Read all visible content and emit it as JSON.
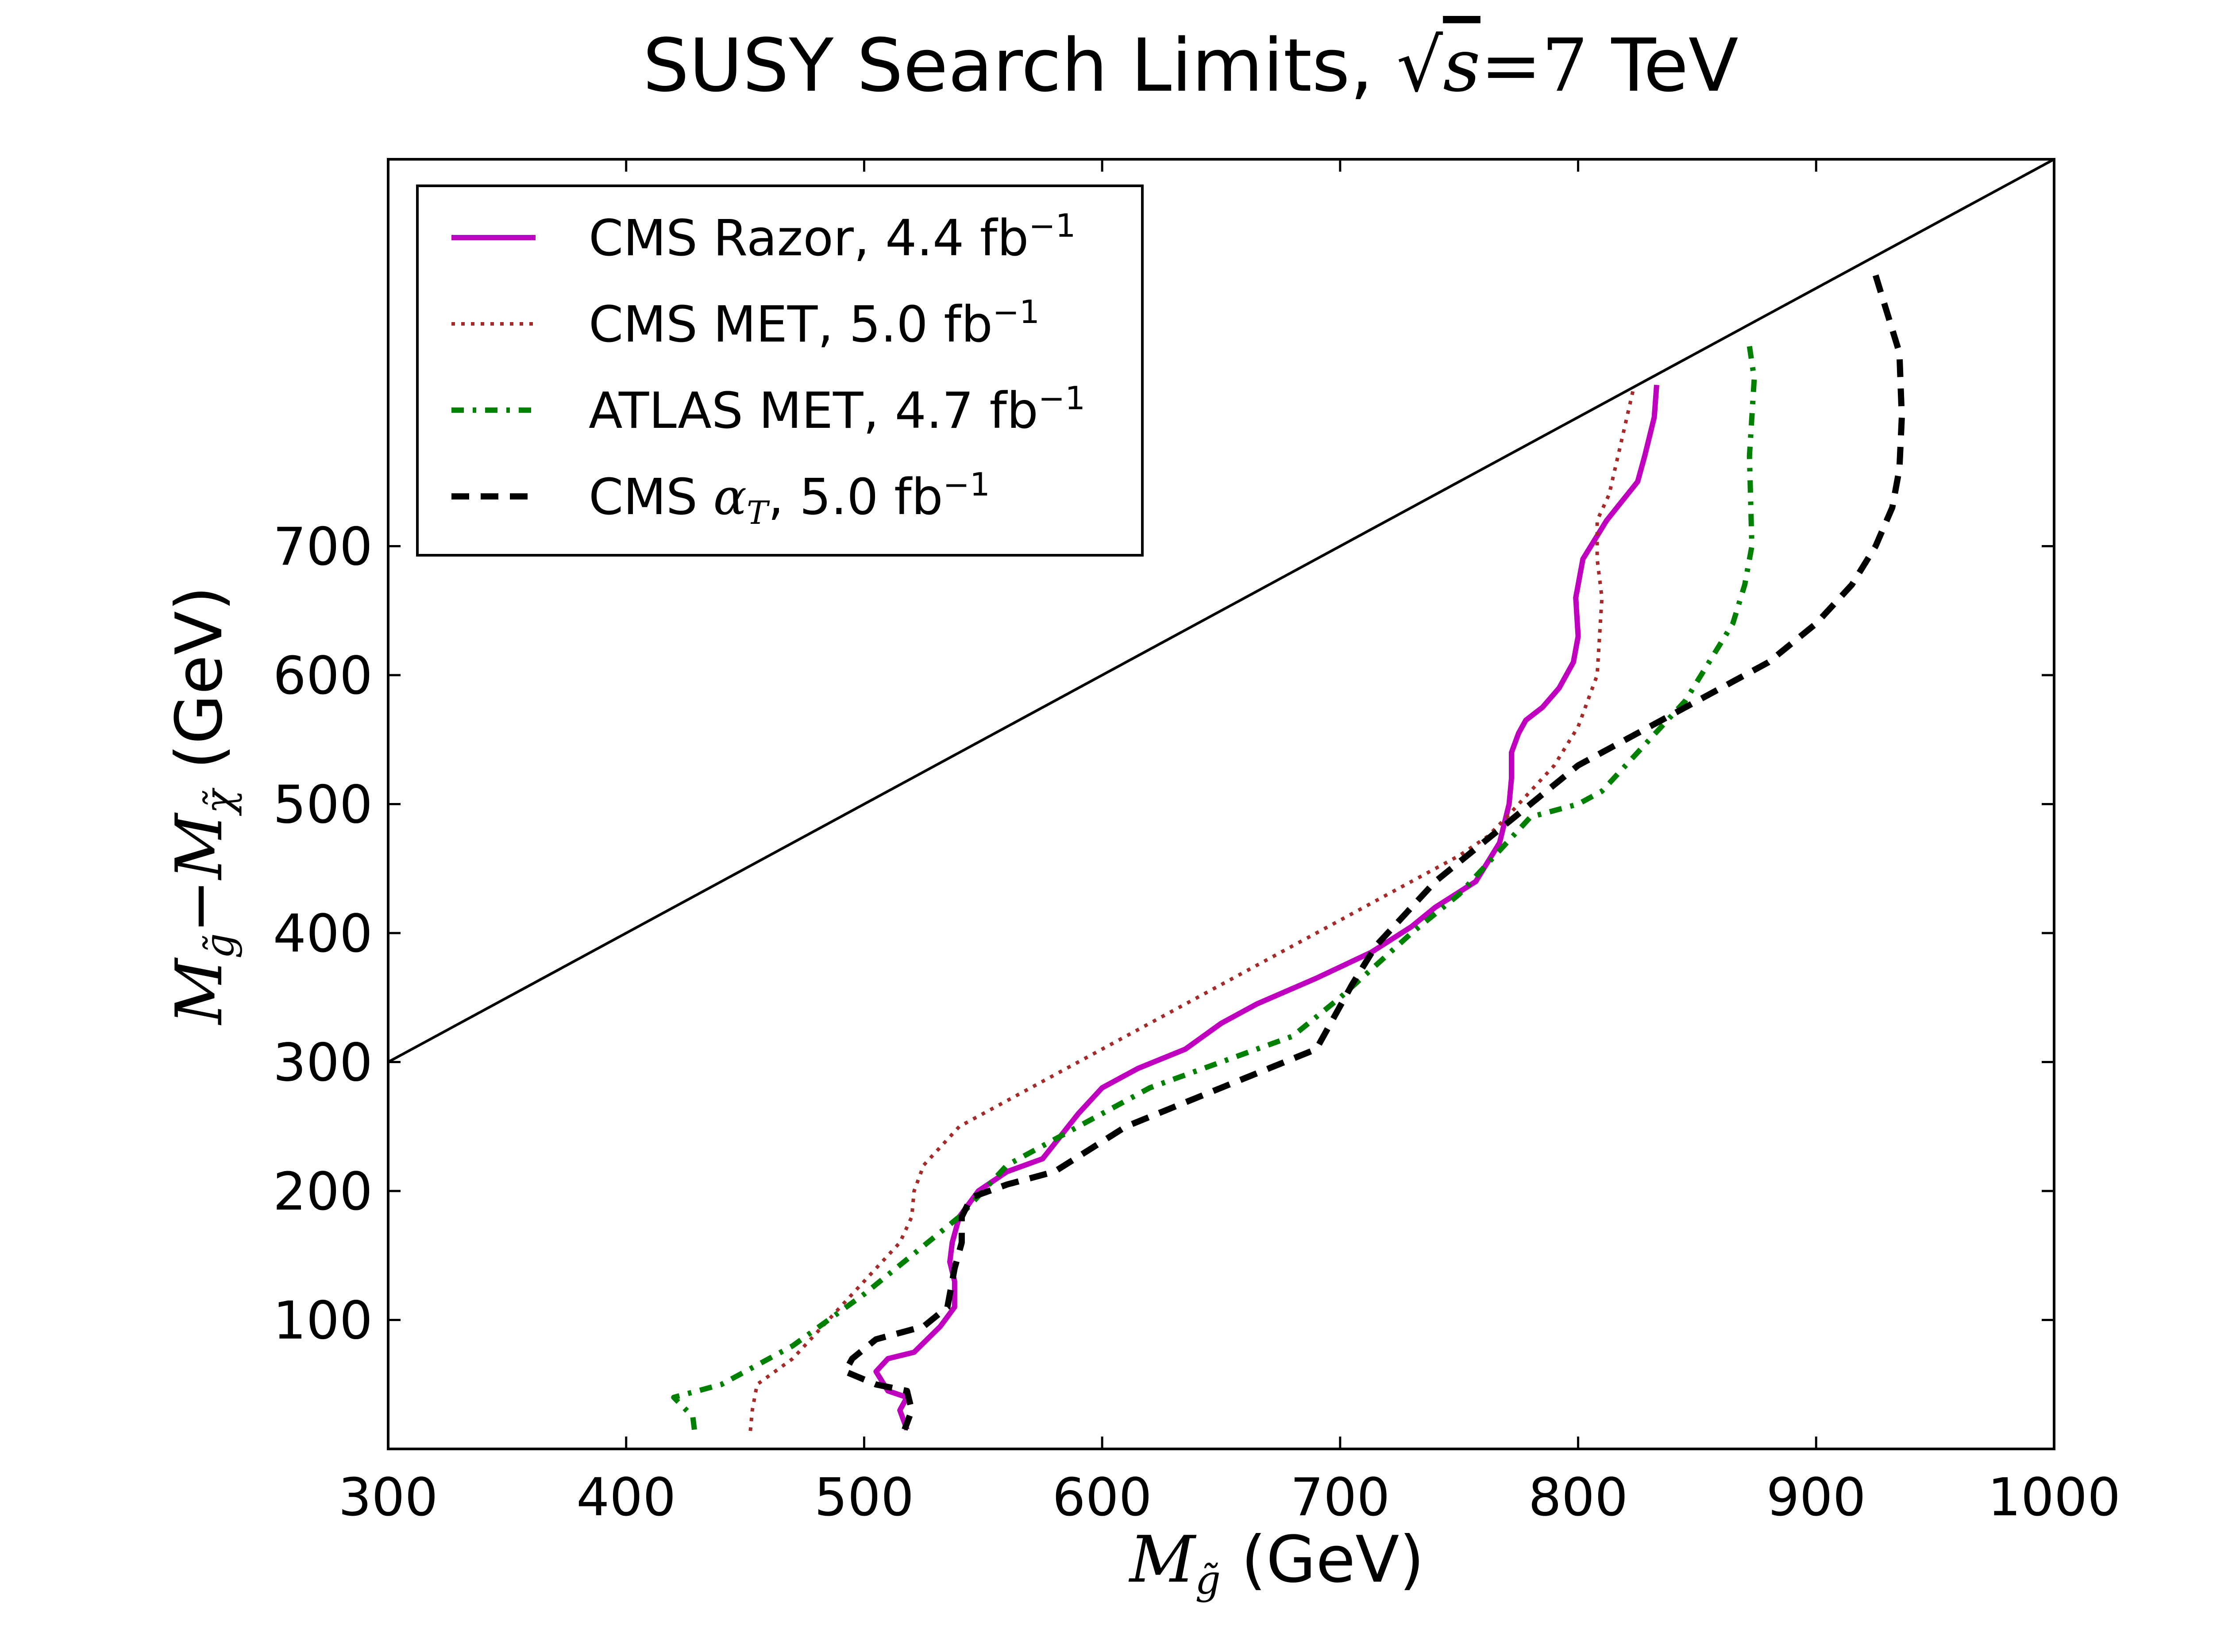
{
  "chart_data": {
    "type": "line",
    "title": {
      "prefix": "SUSY Search Limits, ",
      "math_sqrt_s": "s",
      "math_eq": "=7",
      "suffix": " TeV"
    },
    "xlabel": {
      "math": "M",
      "math_sub": "g̃",
      "text": " (GeV)"
    },
    "ylabel": {
      "math1": "M",
      "math1_sub": "g̃",
      "minus": "−",
      "math2": "M",
      "math2_sub": "χ̃",
      "text": " (GeV)"
    },
    "xlim": [
      300,
      1000
    ],
    "ylim": [
      0,
      1000
    ],
    "xticks": [
      300,
      400,
      500,
      600,
      700,
      800,
      900,
      1000
    ],
    "xtick_labels": [
      "300",
      "400",
      "500",
      "600",
      "700",
      "800",
      "900",
      "1000"
    ],
    "yticks": [
      100,
      200,
      300,
      400,
      500,
      600,
      700
    ],
    "ytick_labels": [
      "100",
      "200",
      "300",
      "400",
      "500",
      "600",
      "700"
    ],
    "grid": false,
    "legend_position": "top-left",
    "diagonal": {
      "x": [
        300,
        1000
      ],
      "y": [
        300,
        1000
      ],
      "color": "#000000"
    },
    "series": [
      {
        "name": "CMS Razor, 4.4 fb",
        "sup": "−1",
        "color": "#bf00bf",
        "style": "solid",
        "x": [
          833,
          832,
          828,
          825,
          812,
          802,
          799,
          800,
          798,
          792,
          785,
          778,
          775,
          772,
          772,
          771,
          767,
          757,
          740,
          730,
          713,
          690,
          665,
          650,
          635,
          615,
          600,
          590,
          575,
          560,
          548,
          540,
          537,
          536,
          538,
          538,
          532,
          521,
          510,
          505,
          510,
          518,
          515,
          518
        ],
        "y": [
          825,
          800,
          770,
          750,
          720,
          690,
          660,
          630,
          610,
          590,
          575,
          565,
          555,
          540,
          520,
          500,
          470,
          440,
          420,
          405,
          385,
          365,
          345,
          330,
          310,
          295,
          280,
          260,
          225,
          215,
          200,
          180,
          160,
          145,
          130,
          110,
          95,
          75,
          70,
          60,
          45,
          40,
          30,
          15
        ]
      },
      {
        "name": "CMS MET, 5.0 fb",
        "sup": "−1",
        "color": "#a52a2a",
        "style": "dotted",
        "x": [
          823,
          818,
          813,
          808,
          808,
          810,
          808,
          800,
          790,
          780,
          770,
          762,
          750,
          720,
          700,
          670,
          640,
          600,
          570,
          540,
          525,
          521,
          520,
          515,
          495,
          470,
          455,
          453,
          452
        ],
        "y": [
          820,
          780,
          740,
          720,
          690,
          660,
          600,
          560,
          530,
          510,
          490,
          475,
          460,
          430,
          410,
          380,
          350,
          310,
          280,
          250,
          220,
          200,
          180,
          160,
          120,
          70,
          50,
          30,
          10
        ]
      },
      {
        "name": "ATLAS MET, 4.7 fb",
        "sup": "−1",
        "color": "#008000",
        "style": "dashdot",
        "x": [
          872,
          874,
          873,
          872,
          873,
          870,
          865,
          855,
          845,
          830,
          820,
          810,
          800,
          780,
          765,
          750,
          730,
          700,
          680,
          650,
          620,
          600,
          580,
          560,
          540,
          520,
          500,
          470,
          440,
          420,
          428,
          429
        ],
        "y": [
          855,
          830,
          800,
          770,
          700,
          670,
          640,
          610,
          580,
          550,
          530,
          510,
          500,
          490,
          460,
          430,
          400,
          350,
          320,
          300,
          280,
          260,
          240,
          220,
          180,
          150,
          120,
          80,
          50,
          40,
          25,
          10
        ]
      },
      {
        "name": "CMS ",
        "name_math": "α",
        "name_math_sub": "T",
        "name_suffix": ", 5.0 fb",
        "sup": "−1",
        "color": "#000000",
        "style": "dashed",
        "x": [
          925,
          930,
          935,
          936,
          935,
          932,
          925,
          915,
          900,
          880,
          860,
          840,
          820,
          800,
          780,
          760,
          740,
          725,
          715,
          705,
          690,
          650,
          610,
          580,
          560,
          545,
          541,
          541,
          538,
          535,
          525,
          505,
          495,
          492,
          505,
          518,
          520,
          517
        ],
        "y": [
          910,
          880,
          850,
          800,
          760,
          730,
          700,
          670,
          640,
          610,
          590,
          570,
          550,
          530,
          500,
          470,
          440,
          410,
          390,
          360,
          310,
          280,
          250,
          215,
          205,
          195,
          180,
          160,
          140,
          110,
          95,
          85,
          70,
          60,
          50,
          45,
          30,
          15
        ]
      }
    ]
  }
}
